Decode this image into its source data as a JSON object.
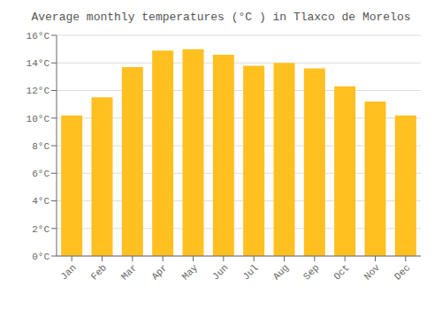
{
  "chart_data": {
    "type": "bar",
    "title": "Average monthly temperatures (°C ) in Tlaxco de Morelos",
    "categories": [
      "Jan",
      "Feb",
      "Mar",
      "Apr",
      "May",
      "Jun",
      "Jul",
      "Aug",
      "Sep",
      "Oct",
      "Nov",
      "Dec"
    ],
    "values": [
      10.2,
      11.5,
      13.7,
      14.9,
      15.0,
      14.6,
      13.8,
      14.0,
      13.6,
      12.3,
      11.2,
      10.2
    ],
    "color": "#FFC020",
    "ylim": [
      0,
      16
    ],
    "yticks": [
      {
        "value": 0,
        "label": "0°C"
      },
      {
        "value": 2,
        "label": "2°C"
      },
      {
        "value": 4,
        "label": "4°C"
      },
      {
        "value": 6,
        "label": "6°C"
      },
      {
        "value": 8,
        "label": "8°C"
      },
      {
        "value": 10,
        "label": "10°C"
      },
      {
        "value": 12,
        "label": "12°C"
      },
      {
        "value": 14,
        "label": "14°C"
      },
      {
        "value": 16,
        "label": "16°C"
      }
    ],
    "grid": true
  }
}
